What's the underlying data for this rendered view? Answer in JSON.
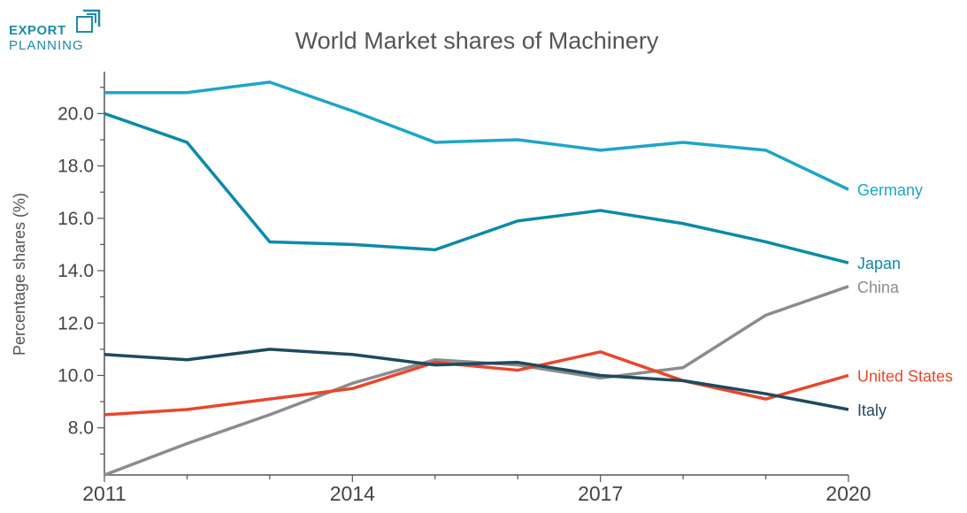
{
  "logo": {
    "line1": "EXPORT",
    "line2": "PLANNING",
    "color": "#1f8aa8"
  },
  "chart_data": {
    "type": "line",
    "title": "World Market shares of Machinery",
    "xlabel": "",
    "ylabel": "Percentage shares (%)",
    "x": [
      2011,
      2012,
      2013,
      2014,
      2015,
      2016,
      2017,
      2018,
      2019,
      2020
    ],
    "xticks": [
      2011,
      2014,
      2017,
      2020
    ],
    "xlim": [
      2011,
      2020
    ],
    "yticks": [
      8.0,
      10.0,
      12.0,
      14.0,
      16.0,
      18.0,
      20.0
    ],
    "ylim": [
      6.2,
      21.6
    ],
    "grid": false,
    "legend": "inline-right",
    "series": [
      {
        "name": "Germany",
        "color": "#1ea5c8",
        "values": [
          20.8,
          20.8,
          21.2,
          20.1,
          18.9,
          19.0,
          18.6,
          18.9,
          18.6,
          17.1
        ]
      },
      {
        "name": "Japan",
        "color": "#0b8aa8",
        "values": [
          20.0,
          18.9,
          15.1,
          15.0,
          14.8,
          15.9,
          16.3,
          15.8,
          15.1,
          14.3
        ]
      },
      {
        "name": "China",
        "color": "#8c8c8c",
        "values": [
          6.2,
          7.4,
          8.5,
          9.7,
          10.6,
          10.4,
          9.9,
          10.3,
          12.3,
          13.4
        ]
      },
      {
        "name": "United States",
        "color": "#e8472d",
        "values": [
          8.5,
          8.7,
          9.1,
          9.5,
          10.5,
          10.2,
          10.9,
          9.8,
          9.1,
          10.0
        ]
      },
      {
        "name": "Italy",
        "color": "#1e4a5e",
        "values": [
          10.8,
          10.6,
          11.0,
          10.8,
          10.4,
          10.5,
          10.0,
          9.8,
          9.3,
          8.7
        ]
      }
    ],
    "label_offsets": {
      "Germany": 0,
      "Japan": 0,
      "China": 0,
      "United States": 0,
      "Italy": 0
    }
  }
}
